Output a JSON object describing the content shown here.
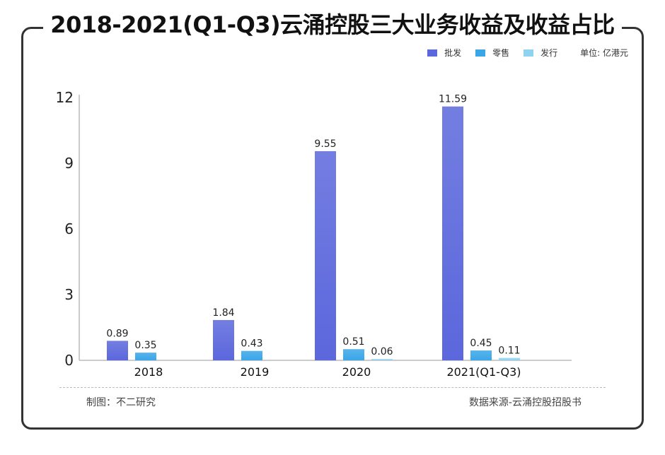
{
  "title": "2018-2021(Q1-Q3)云涌控股三大业务收益及收益占比",
  "legend": {
    "unit": "单位: 亿港元"
  },
  "footer": {
    "made_by": "制图：不二研究",
    "source": "数据来源-云涌控股招股书"
  },
  "colors": {
    "批发": "#5b67dc",
    "零售": "#3aa6e8",
    "发行": "#8fd3f0"
  },
  "chart_data": {
    "type": "bar",
    "categories": [
      "2018",
      "2019",
      "2020",
      "2021(Q1-Q3)"
    ],
    "series": [
      {
        "name": "批发",
        "values": [
          0.89,
          1.84,
          9.55,
          11.59
        ]
      },
      {
        "name": "零售",
        "values": [
          0.35,
          0.43,
          0.51,
          0.45
        ]
      },
      {
        "name": "发行",
        "values": [
          null,
          null,
          0.06,
          0.11
        ]
      }
    ],
    "ylim": [
      0,
      12
    ],
    "yticks": [
      0,
      3,
      6,
      9,
      12
    ],
    "data_labels": true,
    "legend_position": "top-right",
    "grid": false
  }
}
